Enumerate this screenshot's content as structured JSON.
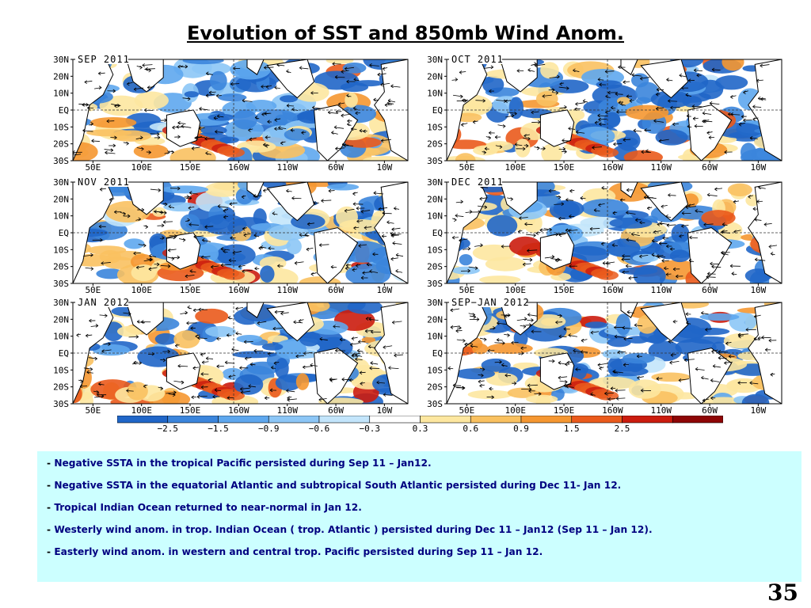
{
  "title": "Evolution of SST and 850mb Wind Anom.",
  "y_ticks": [
    "30N",
    "20N",
    "10N",
    "EQ",
    "10S",
    "20S",
    "30S"
  ],
  "x_ticks": [
    "50E",
    "100E",
    "150E",
    "160W",
    "110W",
    "60W",
    "10W"
  ],
  "panels": [
    {
      "id": "sep-2011",
      "title": "SEP 2011"
    },
    {
      "id": "oct-2011",
      "title": "OCT 2011"
    },
    {
      "id": "nov-2011",
      "title": "NOV 2011"
    },
    {
      "id": "dec-2011",
      "title": "DEC 2011"
    },
    {
      "id": "jan-2012",
      "title": "JAN 2012"
    },
    {
      "id": "sep-jan-2012",
      "title": "SEP−JAN 2012"
    }
  ],
  "colorbar": {
    "labels": [
      "−2.5",
      "−1.5",
      "−0.9",
      "−0.6",
      "−0.3",
      "0.3",
      "0.6",
      "0.9",
      "1.5",
      "2.5"
    ],
    "colors": [
      "#2066c8",
      "#3b85dc",
      "#5ea7ee",
      "#8cc6f6",
      "#c3e5fb",
      "#ffffff",
      "#fde7a0",
      "#f9c160",
      "#f59731",
      "#ea5a1c",
      "#cb1c0e",
      "#8e0606"
    ]
  },
  "notes": [
    "Negative SSTA  in the tropical Pacific persisted during Sep 11 – Jan12.",
    "Negative SSTA in the equatorial Atlantic and subtropical South Atlantic persisted during Dec 11- Jan 12.",
    "Tropical Indian Ocean returned to near-normal in Jan 12.",
    "Westerly wind anom. in trop. Indian Ocean  ( trop. Atlantic ) persisted  during Dec 11 – Jan12 (Sep 11 – Jan 12).",
    "Easterly wind anom. in western and central trop. Pacific persisted during Sep 11 – Jan 12."
  ],
  "page_number": "35"
}
